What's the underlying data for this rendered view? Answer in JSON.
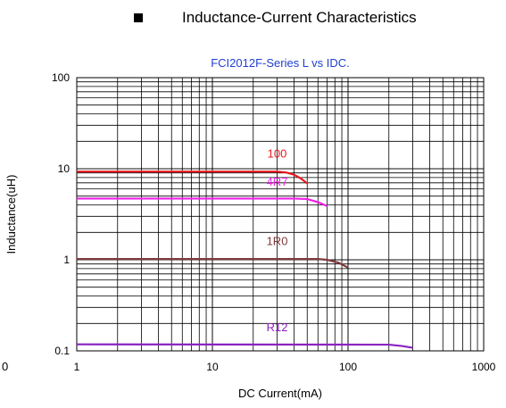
{
  "header": {
    "title": "Inductance-Current Characteristics"
  },
  "chart_data": {
    "type": "line",
    "title": "FCI2012F-Series L vs IDC.",
    "title_color": "#1f3fd1",
    "xlabel": "DC Current(mA)",
    "ylabel": "Inductance(uH)",
    "x_scale": "log",
    "y_scale": "log",
    "xlim": [
      1,
      1000
    ],
    "ylim": [
      0.1,
      100
    ],
    "x_tick_labels": [
      "1",
      "10",
      "100",
      "1000"
    ],
    "y_tick_labels": [
      "0.1",
      "1",
      "10",
      "100"
    ],
    "stray_label": "0",
    "grid": true,
    "series": [
      {
        "name": "100",
        "color": "#e8191e",
        "label_at": [
          30,
          13.2
        ],
        "points": [
          [
            1,
            9.3
          ],
          [
            30,
            9.3
          ],
          [
            35,
            9.1
          ],
          [
            40,
            8.6
          ],
          [
            45,
            7.8
          ],
          [
            50,
            6.9
          ]
        ]
      },
      {
        "name": "4R7",
        "color": "#ee1fe6",
        "label_at": [
          30,
          6.5
        ],
        "points": [
          [
            1,
            4.7
          ],
          [
            40,
            4.7
          ],
          [
            50,
            4.65
          ],
          [
            60,
            4.3
          ],
          [
            70,
            3.9
          ]
        ]
      },
      {
        "name": "1R0",
        "color": "#7f3a3a",
        "label_at": [
          30,
          1.45
        ],
        "points": [
          [
            1,
            1.02
          ],
          [
            60,
            1.02
          ],
          [
            70,
            1.0
          ],
          [
            85,
            0.93
          ],
          [
            100,
            0.82
          ]
        ]
      },
      {
        "name": "R12",
        "color": "#8a24c0",
        "label_at": [
          30,
          0.165
        ],
        "points": [
          [
            1,
            0.118
          ],
          [
            200,
            0.117
          ],
          [
            250,
            0.113
          ],
          [
            300,
            0.108
          ]
        ]
      }
    ]
  }
}
